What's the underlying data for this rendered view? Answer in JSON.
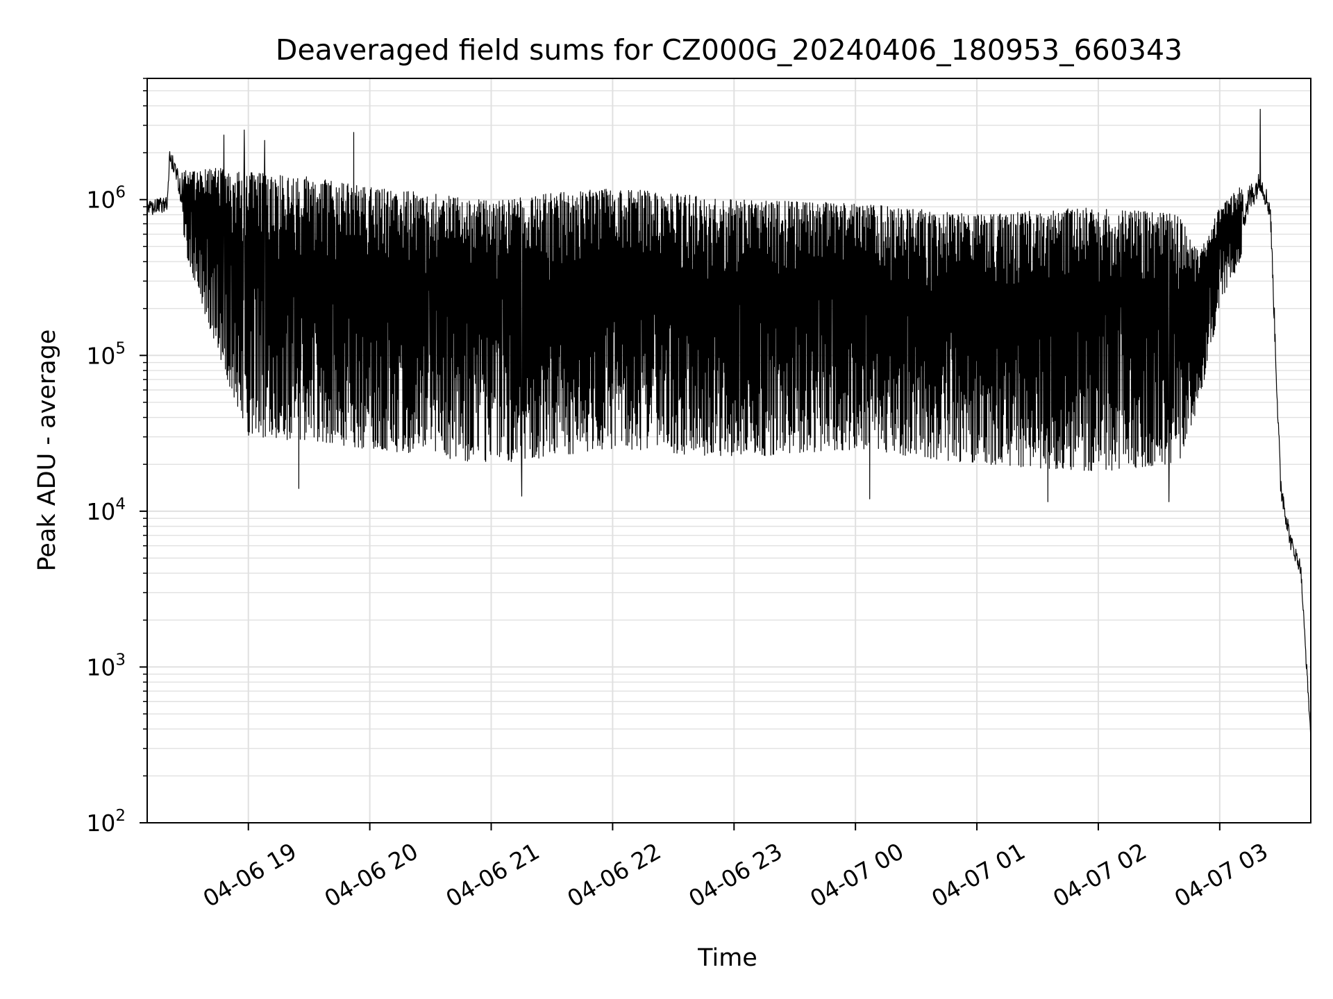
{
  "chart_data": {
    "type": "line",
    "title": "Deaveraged field sums for CZ000G_20240406_180953_660343",
    "xlabel": "Time",
    "ylabel": "Peak ADU - average",
    "yscale": "log",
    "ylim": [
      100,
      6000000
    ],
    "xlim": [
      "2024-04-06 18:10",
      "2024-04-07 03:45"
    ],
    "grid": true,
    "line_color": "#000000",
    "grid_color": "#e0e0e0",
    "x_ticks": [
      {
        "value": "2024-04-06 19:00",
        "label": "04-06 19"
      },
      {
        "value": "2024-04-06 20:00",
        "label": "04-06 20"
      },
      {
        "value": "2024-04-06 21:00",
        "label": "04-06 21"
      },
      {
        "value": "2024-04-06 22:00",
        "label": "04-06 22"
      },
      {
        "value": "2024-04-06 23:00",
        "label": "04-06 23"
      },
      {
        "value": "2024-04-07 00:00",
        "label": "04-07 00"
      },
      {
        "value": "2024-04-07 01:00",
        "label": "04-07 01"
      },
      {
        "value": "2024-04-07 02:00",
        "label": "04-07 02"
      },
      {
        "value": "2024-04-07 03:00",
        "label": "04-07 03"
      }
    ],
    "y_ticks": [
      {
        "value": 100,
        "base": "10",
        "exp": "2"
      },
      {
        "value": 1000,
        "base": "10",
        "exp": "3"
      },
      {
        "value": 10000,
        "base": "10",
        "exp": "4"
      },
      {
        "value": 100000,
        "base": "10",
        "exp": "5"
      },
      {
        "value": 1000000,
        "base": "10",
        "exp": "6"
      }
    ],
    "series": [
      {
        "envelope": [
          {
            "x": "2024-04-06 18:10",
            "upper": 1000000,
            "lower": 700000
          },
          {
            "x": "2024-04-06 18:20",
            "upper": 1100000,
            "lower": 750000
          },
          {
            "x": "2024-04-06 18:21",
            "upper": 2200000,
            "lower": 1500000
          },
          {
            "x": "2024-04-06 18:25",
            "upper": 1800000,
            "lower": 1000000
          },
          {
            "x": "2024-04-06 18:30",
            "upper": 1500000,
            "lower": 400000
          },
          {
            "x": "2024-04-06 18:45",
            "upper": 1600000,
            "lower": 100000
          },
          {
            "x": "2024-04-06 19:00",
            "upper": 1500000,
            "lower": 30000
          },
          {
            "x": "2024-04-06 19:30",
            "upper": 1400000,
            "lower": 28000
          },
          {
            "x": "2024-04-06 20:00",
            "upper": 1200000,
            "lower": 25000
          },
          {
            "x": "2024-04-06 21:00",
            "upper": 1000000,
            "lower": 20000
          },
          {
            "x": "2024-04-06 22:00",
            "upper": 1200000,
            "lower": 25000
          },
          {
            "x": "2024-04-06 23:00",
            "upper": 1000000,
            "lower": 22000
          },
          {
            "x": "2024-04-07 00:00",
            "upper": 950000,
            "lower": 25000
          },
          {
            "x": "2024-04-07 01:00",
            "upper": 800000,
            "lower": 20000
          },
          {
            "x": "2024-04-07 02:00",
            "upper": 900000,
            "lower": 18000
          },
          {
            "x": "2024-04-07 02:40",
            "upper": 800000,
            "lower": 20000
          },
          {
            "x": "2024-04-07 02:50",
            "upper": 450000,
            "lower": 50000
          },
          {
            "x": "2024-04-07 03:00",
            "upper": 900000,
            "lower": 200000
          },
          {
            "x": "2024-04-07 03:10",
            "upper": 1200000,
            "lower": 400000
          },
          {
            "x": "2024-04-07 03:20",
            "upper": 1600000,
            "lower": 1000000
          },
          {
            "x": "2024-04-07 03:25",
            "upper": 1100000,
            "lower": 600000
          },
          {
            "x": "2024-04-07 03:30",
            "upper": 20000,
            "lower": 10000
          },
          {
            "x": "2024-04-07 03:35",
            "upper": 7500,
            "lower": 5000
          },
          {
            "x": "2024-04-07 03:40",
            "upper": 5000,
            "lower": 3500
          },
          {
            "x": "2024-04-07 03:45",
            "upper": 400,
            "lower": 300
          }
        ],
        "peaks": [
          {
            "x": "2024-04-06 18:48",
            "y": 2600000
          },
          {
            "x": "2024-04-06 18:58",
            "y": 2800000
          },
          {
            "x": "2024-04-06 19:08",
            "y": 2400000
          },
          {
            "x": "2024-04-06 19:52",
            "y": 2700000
          },
          {
            "x": "2024-04-07 03:20",
            "y": 3800000
          }
        ],
        "troughs": [
          {
            "x": "2024-04-06 19:25",
            "y": 14000
          },
          {
            "x": "2024-04-06 21:15",
            "y": 12500
          },
          {
            "x": "2024-04-07 00:07",
            "y": 12000
          },
          {
            "x": "2024-04-07 01:35",
            "y": 11500
          },
          {
            "x": "2024-04-07 02:35",
            "y": 11500
          }
        ]
      }
    ]
  }
}
